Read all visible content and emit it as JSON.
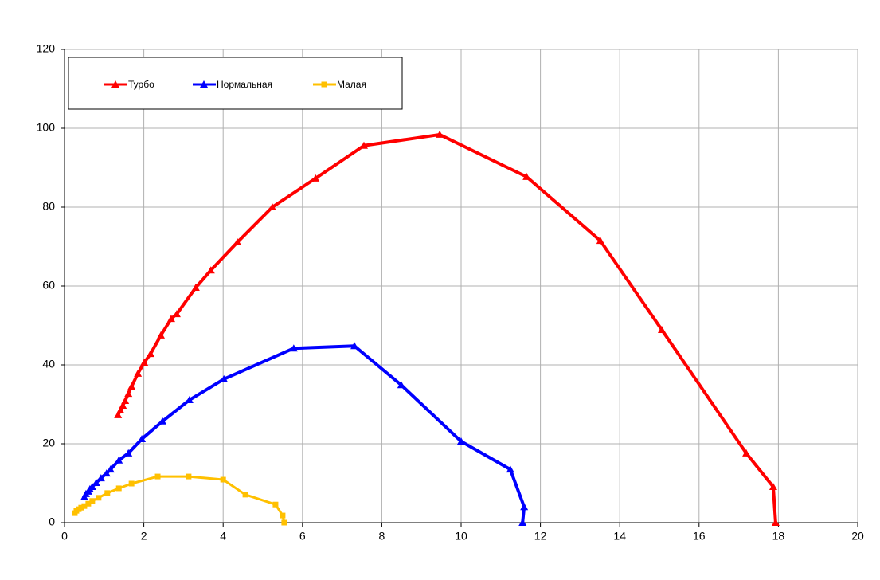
{
  "chart_data": {
    "type": "line",
    "xlim": [
      0,
      20
    ],
    "xticks": [
      0,
      2,
      4,
      6,
      8,
      10,
      12,
      14,
      16,
      18,
      20
    ],
    "ylim": [
      0,
      120
    ],
    "yticks": [
      0,
      20,
      40,
      60,
      80,
      100,
      120
    ],
    "grid": true,
    "legend": "top-left",
    "series": [
      {
        "name": "Турбо",
        "color": "#ff0000",
        "marker": "triangle",
        "x": [
          1.35,
          1.41,
          1.47,
          1.53,
          1.61,
          1.69,
          1.85,
          2.01,
          2.17,
          2.43,
          2.69,
          2.83,
          3.31,
          3.69,
          4.36,
          5.24,
          6.33,
          7.55,
          9.46,
          11.65,
          13.51,
          15.06,
          17.19,
          17.87,
          17.93
        ],
        "values": [
          27.3,
          28.5,
          29.7,
          30.9,
          32.7,
          34.5,
          37.8,
          40.6,
          42.8,
          47.5,
          51.7,
          52.9,
          59.6,
          64.0,
          71.1,
          80.0,
          87.3,
          95.6,
          98.4,
          87.7,
          71.5,
          48.9,
          17.6,
          9.1,
          0
        ]
      },
      {
        "name": "Нормальная",
        "color": "#0000ff",
        "marker": "triangle",
        "x": [
          0.5,
          0.54,
          0.6,
          0.64,
          0.7,
          0.8,
          0.92,
          1.06,
          1.16,
          1.37,
          1.61,
          1.95,
          2.47,
          3.15,
          4.02,
          5.78,
          7.31,
          8.49,
          10.0,
          11.24,
          11.59,
          11.55
        ],
        "values": [
          6.5,
          7.3,
          7.9,
          8.5,
          9.1,
          10.1,
          11.3,
          12.5,
          13.5,
          15.8,
          17.6,
          21.2,
          25.7,
          31.1,
          36.4,
          44.2,
          44.8,
          34.9,
          20.6,
          13.5,
          4.0,
          0
        ]
      },
      {
        "name": "Малая",
        "color": "#ffc000",
        "marker": "square",
        "x": [
          0.26,
          0.3,
          0.36,
          0.42,
          0.5,
          0.6,
          0.7,
          0.86,
          1.08,
          1.37,
          1.69,
          2.35,
          3.13,
          4.0,
          4.56,
          5.32,
          5.5,
          5.54
        ],
        "values": [
          2.4,
          3.0,
          3.4,
          3.8,
          4.2,
          4.8,
          5.5,
          6.3,
          7.5,
          8.7,
          9.9,
          11.7,
          11.7,
          10.9,
          7.1,
          4.6,
          1.8,
          0
        ]
      }
    ]
  }
}
